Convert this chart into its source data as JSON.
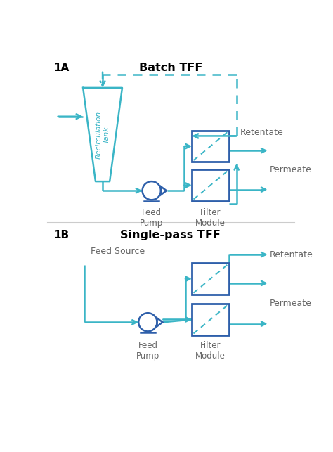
{
  "bg_color": "#ffffff",
  "teal": "#3ab5c6",
  "blue": "#2e5faa",
  "text_dark": "#666666",
  "title_1A": "Batch TFF",
  "title_1B": "Single-pass TFF",
  "label_1A": "1A",
  "label_1B": "1B",
  "label_retentate": "Retentate",
  "label_permeate": "Permeate",
  "label_feed_pump": "Feed\nPump",
  "label_filter_module": "Filter\nModule",
  "label_feed_source": "Feed Source",
  "label_recirculation_tank": "Recirculation\nTank"
}
